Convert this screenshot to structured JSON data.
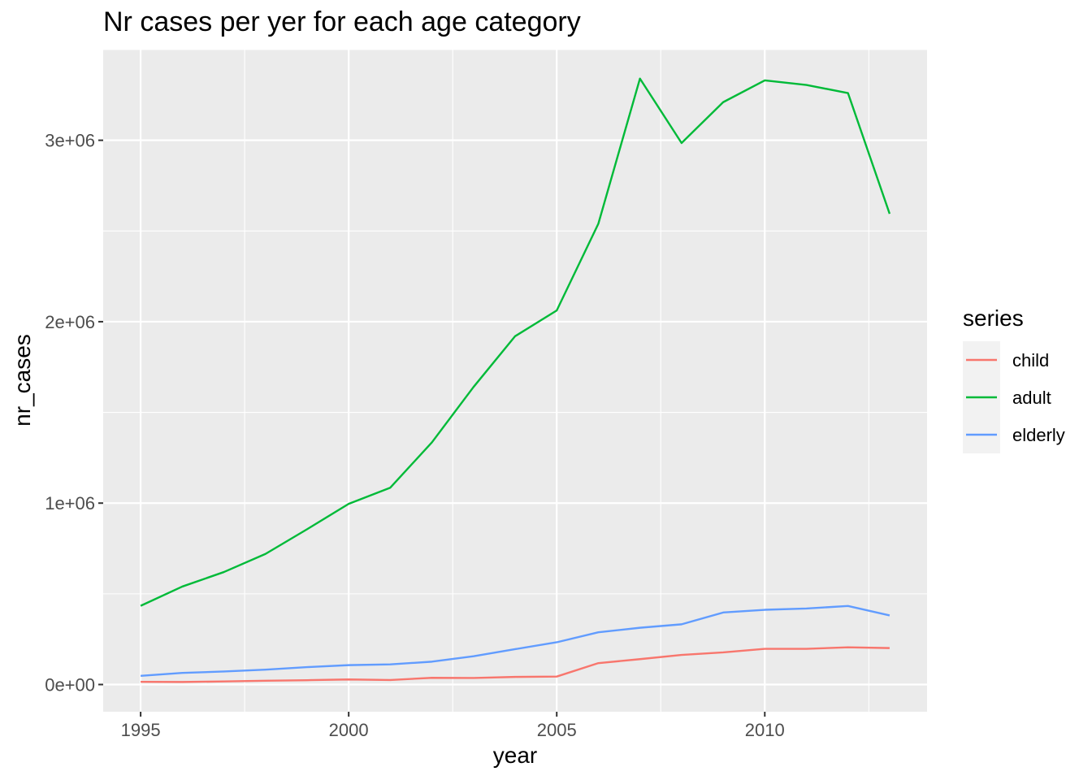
{
  "chart_data": {
    "type": "line",
    "title": "Nr cases per yer for each age category",
    "xlabel": "year",
    "ylabel": "nr_cases",
    "x": [
      1995,
      1996,
      1997,
      1998,
      1999,
      2000,
      2001,
      2002,
      2003,
      2004,
      2005,
      2006,
      2007,
      2008,
      2009,
      2010,
      2011,
      2012,
      2013
    ],
    "series": [
      {
        "name": "child",
        "color": "#F8766D",
        "values": [
          15000,
          14000,
          17000,
          21000,
          24000,
          28000,
          25000,
          37000,
          36000,
          42000,
          44000,
          118000,
          140000,
          163000,
          177000,
          197000,
          197000,
          205000,
          201000
        ]
      },
      {
        "name": "adult",
        "color": "#00BA38",
        "values": [
          434000,
          540000,
          620000,
          720000,
          856000,
          996000,
          1085000,
          1335000,
          1640000,
          1920000,
          2062000,
          2540000,
          3340000,
          2985000,
          3210000,
          3330000,
          3305000,
          3260000,
          2595000
        ]
      },
      {
        "name": "elderly",
        "color": "#619CFF",
        "values": [
          48000,
          64000,
          72000,
          82000,
          96000,
          107000,
          111000,
          126000,
          156000,
          195000,
          233000,
          288000,
          313000,
          332000,
          397000,
          412000,
          419000,
          433000,
          381000
        ]
      }
    ],
    "xlim": [
      1994.1,
      2013.9
    ],
    "ylim": [
      -150000,
      3500000
    ],
    "x_ticks": [
      1995,
      2000,
      2005,
      2010
    ],
    "x_tick_labels": [
      "1995",
      "2000",
      "2005",
      "2010"
    ],
    "y_ticks": [
      0,
      1000000,
      2000000,
      3000000
    ],
    "y_tick_labels": [
      "0e+00",
      "1e+06",
      "2e+06",
      "3e+06"
    ],
    "grid": true,
    "legend": {
      "title": "series",
      "position": "right"
    },
    "panel_background": "#EBEBEB",
    "grid_color": "#FFFFFF"
  }
}
